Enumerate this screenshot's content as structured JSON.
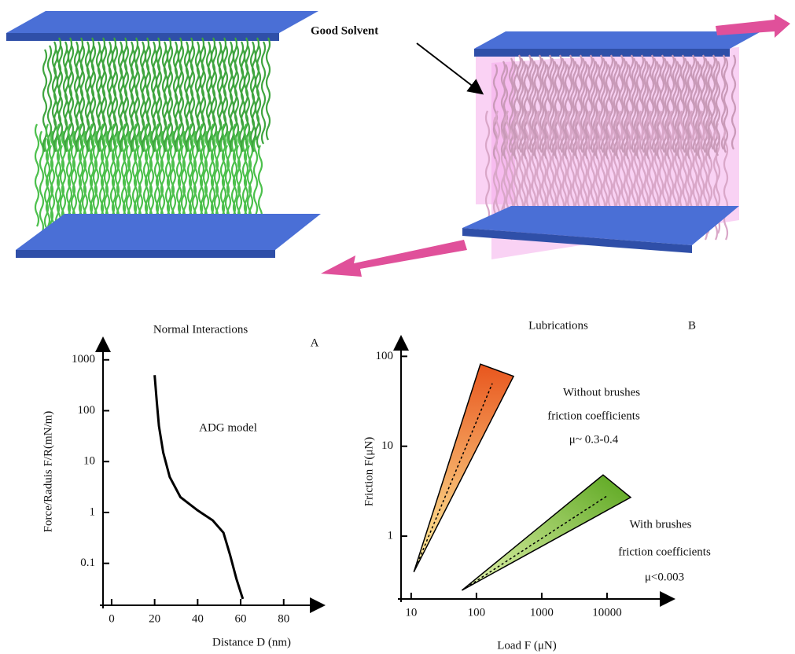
{
  "illustration": {
    "label": "Good Solvent"
  },
  "chart_data": [
    {
      "type": "line",
      "title": "Normal Interactions",
      "panel_label": "A",
      "x_label": "Distance D (nm)",
      "y_label": "Force/Raduis F/R(mN/m)",
      "annotations": [
        "ADG model"
      ],
      "ylog": true,
      "x": [
        20,
        21,
        22,
        24,
        27,
        32,
        40,
        47,
        52,
        55,
        58,
        61
      ],
      "values": [
        500,
        150,
        50,
        15,
        5,
        2,
        1.1,
        0.7,
        0.4,
        0.15,
        0.05,
        0.02
      ],
      "color": "#000000",
      "xlim": [
        -4,
        98
      ],
      "ylim": [
        0.015,
        2500
      ],
      "xticks": [
        0,
        20,
        40,
        60,
        80
      ],
      "yticks": [
        0.1,
        1,
        10,
        100,
        1000
      ]
    },
    {
      "type": "wedge",
      "title": "Lubrications",
      "panel_label": "B",
      "x_label": "Load F (μN)",
      "y_label": "Friction F(μN)",
      "annotations": [
        [
          "Without brushes",
          "friction coefficients",
          "μ~ 0.3-0.4"
        ],
        [
          "With brushes",
          "friction coefficients",
          "μ<0.003"
        ]
      ],
      "xlog": true,
      "ylog": true,
      "series": [
        {
          "color": "#e8561e",
          "x": [
            11,
            115,
            370
          ],
          "values": [
            0.4,
            82,
            60
          ],
          "center_x": [
            11,
            175
          ],
          "center_values": [
            0.4,
            50
          ]
        },
        {
          "color": "#5aa61e",
          "x": [
            60,
            8700,
            23000
          ],
          "values": [
            0.25,
            4.8,
            2.7
          ],
          "center_x": [
            60,
            10000
          ],
          "center_values": [
            0.25,
            2.8
          ]
        }
      ],
      "xlim": [
        7,
        100000
      ],
      "ylim": [
        0.2,
        160
      ],
      "xticks": [
        10,
        100,
        1000,
        10000
      ],
      "yticks": [
        1,
        10,
        100
      ]
    }
  ]
}
